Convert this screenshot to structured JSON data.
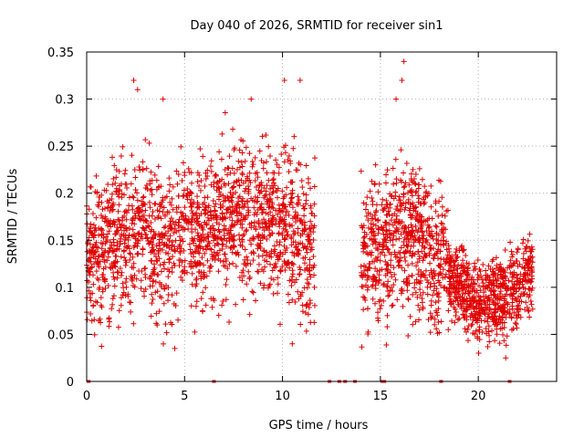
{
  "chart_data": {
    "type": "scatter",
    "title": "Day 040 of 2026, SRMTID for receiver sin1",
    "xlabel": "GPS time / hours",
    "ylabel": "SRMTID / TECUs",
    "xlim": [
      0,
      24
    ],
    "ylim": [
      0,
      0.35
    ],
    "x_ticks": [
      0,
      5,
      10,
      15,
      20
    ],
    "x_tick_labels": [
      "0",
      "5",
      "10",
      "15",
      "20"
    ],
    "y_ticks": [
      0,
      0.05,
      0.1,
      0.15,
      0.2,
      0.25,
      0.3,
      0.35
    ],
    "y_tick_labels": [
      "0",
      "0.05",
      "0.1",
      "0.15",
      "0.2",
      "0.25",
      "0.3",
      "0.35"
    ],
    "grid": true,
    "marker": "+",
    "series_color": "#e00000",
    "description_of_data": "Dense scatter of SRMTID values (about 0.03 to 0.34 TECU) from 0 to 12 h and from 14 to 22.8 h; data gap between about 12 and 14 h; zero values at the times listed in zero_points.",
    "trend": {
      "x": [
        0,
        1,
        2,
        3,
        4,
        5,
        6,
        7,
        8,
        9,
        10,
        11,
        11.6,
        14,
        15,
        16,
        17,
        18,
        19,
        20,
        21,
        22,
        22.8
      ],
      "y": [
        0.13,
        0.14,
        0.15,
        0.16,
        0.15,
        0.16,
        0.16,
        0.17,
        0.17,
        0.17,
        0.17,
        0.15,
        0.14,
        0.13,
        0.14,
        0.16,
        0.15,
        0.13,
        0.1,
        0.08,
        0.09,
        0.1,
        0.12
      ]
    },
    "peaks": [
      {
        "x": 2.4,
        "y": 0.32
      },
      {
        "x": 2.6,
        "y": 0.31
      },
      {
        "x": 3.9,
        "y": 0.3
      },
      {
        "x": 8.4,
        "y": 0.3
      },
      {
        "x": 10.1,
        "y": 0.32
      },
      {
        "x": 10.9,
        "y": 0.32
      },
      {
        "x": 16.2,
        "y": 0.34
      },
      {
        "x": 16.1,
        "y": 0.32
      },
      {
        "x": 15.8,
        "y": 0.3
      }
    ],
    "lows": [
      {
        "x": 4.5,
        "y": 0.035
      },
      {
        "x": 10.5,
        "y": 0.04
      },
      {
        "x": 21.4,
        "y": 0.025
      },
      {
        "x": 3.6,
        "y": 0.06
      }
    ],
    "zero_points": [
      0.1,
      6.5,
      12.4,
      12.9,
      13.2,
      13.7,
      15.1,
      15.2,
      18.1,
      21.6
    ]
  }
}
